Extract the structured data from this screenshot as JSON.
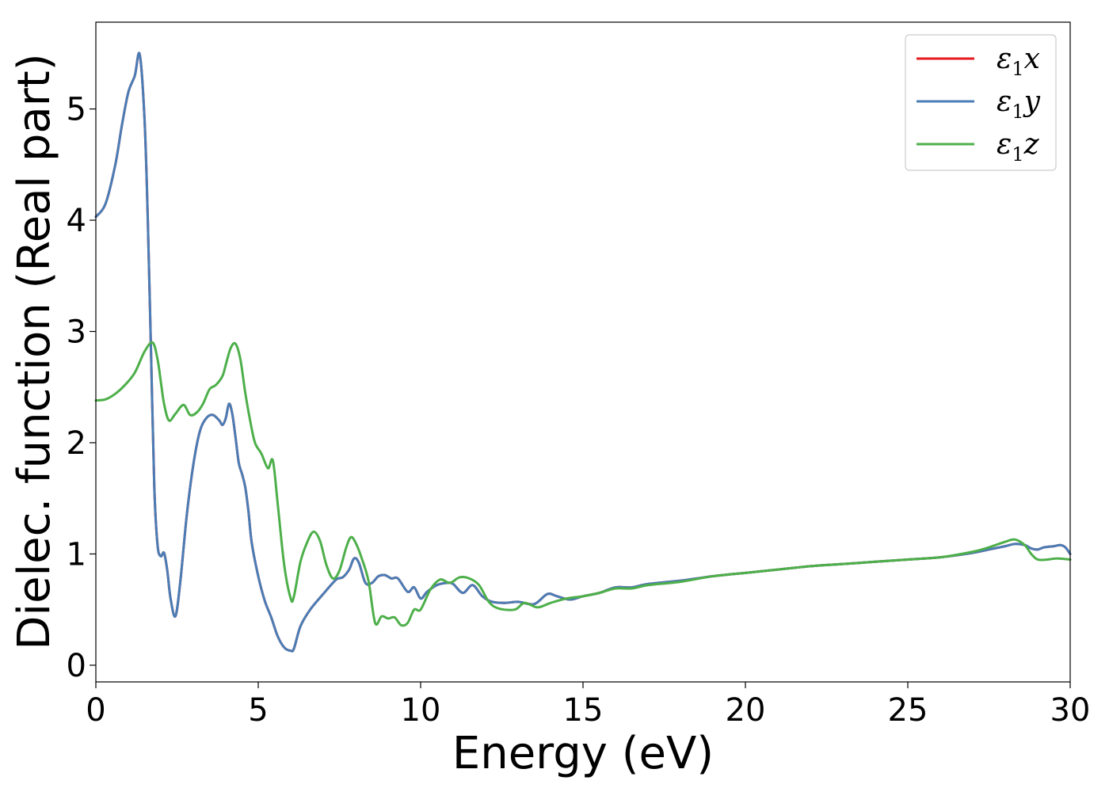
{
  "chart_data": {
    "type": "line",
    "title": "",
    "xlabel": "Energy (eV)",
    "ylabel": "Dielec. function (Real part)",
    "xlim": [
      0,
      30
    ],
    "ylim": [
      -0.15,
      5.78
    ],
    "xticks": [
      0,
      5,
      10,
      15,
      20,
      25,
      30
    ],
    "yticks": [
      0,
      1,
      2,
      3,
      4,
      5
    ],
    "grid": false,
    "legend_position": "top-right",
    "series": [
      {
        "name": "ε1x",
        "label_base": "ε",
        "label_sub": "1",
        "label_axis": "x",
        "color": "#e41a1c",
        "x": [
          0,
          0.3,
          0.6,
          0.8,
          1.0,
          1.2,
          1.35,
          1.5,
          1.6,
          1.7,
          1.8,
          1.9,
          2.0,
          2.1,
          2.2,
          2.3,
          2.45,
          2.6,
          2.8,
          3.0,
          3.2,
          3.4,
          3.6,
          3.8,
          3.9,
          4.0,
          4.1,
          4.2,
          4.3,
          4.4,
          4.5,
          4.6,
          4.7,
          4.8,
          5.0,
          5.2,
          5.4,
          5.6,
          5.8,
          6.0,
          6.1,
          6.3,
          6.6,
          7.0,
          7.4,
          7.6,
          7.8,
          7.95,
          8.1,
          8.3,
          8.5,
          8.7,
          8.9,
          9.1,
          9.3,
          9.6,
          9.8,
          10.0,
          10.2,
          10.5,
          10.8,
          11.0,
          11.3,
          11.6,
          11.9,
          12.2,
          12.6,
          13.0,
          13.5,
          13.9,
          14.2,
          14.6,
          15.0,
          15.5,
          16.0,
          16.5,
          17.0,
          18.0,
          19.0,
          20.0,
          21.0,
          22.0,
          23.0,
          24.0,
          25.0,
          26.0,
          27.0,
          27.5,
          28.0,
          28.3,
          28.6,
          28.8,
          29.0,
          29.2,
          29.5,
          29.7,
          29.85,
          30.0
        ],
        "y": [
          4.03,
          4.15,
          4.5,
          4.85,
          5.15,
          5.3,
          5.49,
          4.9,
          4.0,
          2.8,
          1.6,
          1.08,
          0.98,
          1.01,
          0.85,
          0.6,
          0.44,
          0.75,
          1.35,
          1.8,
          2.1,
          2.22,
          2.25,
          2.2,
          2.16,
          2.22,
          2.35,
          2.26,
          2.05,
          1.82,
          1.72,
          1.6,
          1.38,
          1.1,
          0.8,
          0.58,
          0.43,
          0.26,
          0.16,
          0.13,
          0.15,
          0.35,
          0.5,
          0.64,
          0.77,
          0.79,
          0.86,
          0.96,
          0.92,
          0.74,
          0.74,
          0.8,
          0.81,
          0.78,
          0.78,
          0.66,
          0.7,
          0.6,
          0.66,
          0.72,
          0.74,
          0.73,
          0.65,
          0.72,
          0.62,
          0.57,
          0.56,
          0.57,
          0.55,
          0.64,
          0.62,
          0.59,
          0.62,
          0.65,
          0.7,
          0.7,
          0.73,
          0.76,
          0.8,
          0.83,
          0.86,
          0.89,
          0.91,
          0.93,
          0.95,
          0.97,
          1.01,
          1.04,
          1.07,
          1.09,
          1.08,
          1.05,
          1.04,
          1.06,
          1.07,
          1.08,
          1.06,
          1.0
        ]
      },
      {
        "name": "ε1y",
        "label_base": "ε",
        "label_sub": "1",
        "label_axis": "y",
        "color": "#4a7db5",
        "x": [
          0,
          0.3,
          0.6,
          0.8,
          1.0,
          1.2,
          1.35,
          1.5,
          1.6,
          1.7,
          1.8,
          1.9,
          2.0,
          2.1,
          2.2,
          2.3,
          2.45,
          2.6,
          2.8,
          3.0,
          3.2,
          3.4,
          3.6,
          3.8,
          3.9,
          4.0,
          4.1,
          4.2,
          4.3,
          4.4,
          4.5,
          4.6,
          4.7,
          4.8,
          5.0,
          5.2,
          5.4,
          5.6,
          5.8,
          6.0,
          6.1,
          6.3,
          6.6,
          7.0,
          7.4,
          7.6,
          7.8,
          7.95,
          8.1,
          8.3,
          8.5,
          8.7,
          8.9,
          9.1,
          9.3,
          9.6,
          9.8,
          10.0,
          10.2,
          10.5,
          10.8,
          11.0,
          11.3,
          11.6,
          11.9,
          12.2,
          12.6,
          13.0,
          13.5,
          13.9,
          14.2,
          14.6,
          15.0,
          15.5,
          16.0,
          16.5,
          17.0,
          18.0,
          19.0,
          20.0,
          21.0,
          22.0,
          23.0,
          24.0,
          25.0,
          26.0,
          27.0,
          27.5,
          28.0,
          28.3,
          28.6,
          28.8,
          29.0,
          29.2,
          29.5,
          29.7,
          29.85,
          30.0
        ],
        "y": [
          4.03,
          4.15,
          4.5,
          4.85,
          5.15,
          5.3,
          5.49,
          4.9,
          4.0,
          2.8,
          1.6,
          1.08,
          0.98,
          1.01,
          0.85,
          0.6,
          0.44,
          0.75,
          1.35,
          1.8,
          2.1,
          2.22,
          2.25,
          2.2,
          2.16,
          2.22,
          2.35,
          2.26,
          2.05,
          1.82,
          1.72,
          1.6,
          1.38,
          1.1,
          0.8,
          0.58,
          0.43,
          0.26,
          0.16,
          0.13,
          0.15,
          0.35,
          0.5,
          0.64,
          0.77,
          0.79,
          0.86,
          0.96,
          0.92,
          0.74,
          0.74,
          0.8,
          0.81,
          0.78,
          0.78,
          0.66,
          0.7,
          0.6,
          0.66,
          0.72,
          0.74,
          0.73,
          0.65,
          0.72,
          0.62,
          0.57,
          0.56,
          0.57,
          0.55,
          0.64,
          0.62,
          0.59,
          0.62,
          0.65,
          0.7,
          0.7,
          0.73,
          0.76,
          0.8,
          0.83,
          0.86,
          0.89,
          0.91,
          0.93,
          0.95,
          0.97,
          1.01,
          1.04,
          1.07,
          1.09,
          1.08,
          1.05,
          1.04,
          1.06,
          1.07,
          1.08,
          1.06,
          1.0
        ]
      },
      {
        "name": "ε1z",
        "label_base": "ε",
        "label_sub": "1",
        "label_axis": "z",
        "color": "#4daf4a",
        "x": [
          0,
          0.3,
          0.6,
          0.9,
          1.2,
          1.5,
          1.75,
          1.9,
          2.0,
          2.1,
          2.25,
          2.45,
          2.7,
          2.9,
          3.1,
          3.3,
          3.5,
          3.7,
          3.9,
          4.0,
          4.15,
          4.3,
          4.45,
          4.6,
          4.75,
          4.9,
          5.1,
          5.3,
          5.45,
          5.6,
          5.8,
          6.0,
          6.1,
          6.3,
          6.5,
          6.7,
          6.9,
          7.1,
          7.3,
          7.5,
          7.7,
          7.85,
          8.0,
          8.2,
          8.4,
          8.6,
          8.8,
          9.0,
          9.2,
          9.4,
          9.6,
          9.8,
          10.0,
          10.3,
          10.6,
          10.9,
          11.2,
          11.5,
          11.8,
          12.1,
          12.4,
          12.9,
          13.2,
          13.6,
          14.0,
          14.5,
          15.0,
          15.5,
          16.0,
          16.5,
          17.0,
          18.0,
          19.0,
          20.0,
          21.0,
          22.0,
          23.0,
          24.0,
          25.0,
          26.0,
          27.0,
          27.5,
          28.0,
          28.3,
          28.6,
          28.8,
          29.0,
          29.3,
          29.6,
          30.0
        ],
        "y": [
          2.38,
          2.39,
          2.44,
          2.52,
          2.63,
          2.82,
          2.9,
          2.75,
          2.55,
          2.35,
          2.2,
          2.26,
          2.34,
          2.25,
          2.27,
          2.35,
          2.48,
          2.52,
          2.6,
          2.7,
          2.85,
          2.89,
          2.75,
          2.45,
          2.2,
          2.0,
          1.9,
          1.77,
          1.84,
          1.45,
          0.9,
          0.6,
          0.62,
          0.93,
          1.1,
          1.2,
          1.12,
          0.9,
          0.78,
          0.85,
          1.05,
          1.15,
          1.1,
          0.95,
          0.75,
          0.38,
          0.44,
          0.42,
          0.43,
          0.36,
          0.38,
          0.5,
          0.5,
          0.68,
          0.77,
          0.74,
          0.79,
          0.78,
          0.72,
          0.57,
          0.51,
          0.5,
          0.56,
          0.52,
          0.56,
          0.6,
          0.62,
          0.65,
          0.69,
          0.69,
          0.72,
          0.75,
          0.8,
          0.83,
          0.86,
          0.89,
          0.91,
          0.93,
          0.95,
          0.97,
          1.02,
          1.06,
          1.11,
          1.13,
          1.08,
          1.0,
          0.95,
          0.95,
          0.96,
          0.95
        ]
      }
    ]
  }
}
